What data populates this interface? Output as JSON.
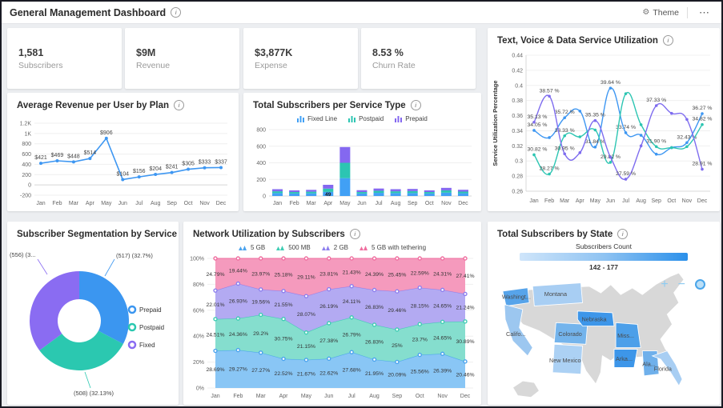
{
  "header": {
    "title": "General Management Dashboard",
    "theme_label": "Theme"
  },
  "icons": {
    "info": "i",
    "theme": "⚙",
    "more": "⋯",
    "zoom_in": "+",
    "zoom_out": "−"
  },
  "kpis": [
    {
      "value": "1,581",
      "label": "Subscribers"
    },
    {
      "value": "$9M",
      "label": "Revenue"
    },
    {
      "value": "$3,877K",
      "label": "Expense"
    },
    {
      "value": "8.53 %",
      "label": "Churn Rate"
    }
  ],
  "months": [
    "Jan",
    "Feb",
    "Mar",
    "Apr",
    "May",
    "Jun",
    "Jul",
    "Aug",
    "Sep",
    "Oct",
    "Nov",
    "Dec"
  ],
  "chart_data": [
    {
      "type": "line",
      "title": "Average Revenue per User by Plan",
      "categories": [
        "Jan",
        "Feb",
        "Mar",
        "Apr",
        "May",
        "Jun",
        "Jul",
        "Aug",
        "Sep",
        "Oct",
        "Nov",
        "Dec"
      ],
      "values": [
        421,
        469,
        448,
        514,
        906,
        104,
        156,
        204,
        241,
        305,
        333,
        337
      ],
      "point_labels": [
        "$421",
        "$469",
        "$448",
        "$514",
        "$906",
        "$104",
        "$156",
        "$204",
        "$241",
        "$305",
        "$333",
        "$337"
      ],
      "ylim": [
        -200,
        1200
      ],
      "ytick_labels": [
        "-200",
        "0",
        "200",
        "400",
        "600",
        "800",
        "1K",
        "1.2K"
      ],
      "color": "#3e97f2"
    },
    {
      "type": "line",
      "title": "Text, Voice & Data Service Utilization",
      "ylabel": "Service Utilization Percentage",
      "categories": [
        "Jan",
        "Feb",
        "Mar",
        "Apr",
        "May",
        "Jun",
        "Jul",
        "Aug",
        "Sep",
        "Oct",
        "Nov",
        "Dec"
      ],
      "ylim": [
        0.26,
        0.44
      ],
      "ytick_step": 0.02,
      "series": [
        {
          "name": "series-blue",
          "color": "#3e97f2",
          "values": [
            0.3405,
            0.331,
            0.3572,
            0.366,
            0.3184,
            0.3964,
            0.3374,
            0.334,
            0.309,
            0.3176,
            0.3243,
            0.3627
          ],
          "labels": [
            "34.05 %",
            null,
            "35.72 %",
            null,
            "31.84 %",
            "39.64 %",
            "33.74 %",
            null,
            null,
            null,
            "32.43 %",
            "36.27 %"
          ]
        },
        {
          "name": "series-teal",
          "color": "#2cc5b2",
          "values": [
            0.3082,
            0.2827,
            0.3333,
            0.332,
            0.341,
            0.2982,
            0.389,
            0.348,
            0.319,
            0.3176,
            0.319,
            0.3482
          ],
          "labels": [
            "30.82 %",
            "28.27 %",
            "33.33 %",
            null,
            null,
            "29.82 %",
            null,
            null,
            "31.90 %",
            null,
            null,
            "34.82 %"
          ]
        },
        {
          "name": "series-purple",
          "color": "#7e6cef",
          "values": [
            0.3513,
            0.3857,
            0.3095,
            0.311,
            0.3535,
            0.305,
            0.2759,
            0.32,
            0.3733,
            0.363,
            0.355,
            0.2891
          ],
          "labels": [
            "35.13 %",
            "38.57 %",
            "30.95 %",
            null,
            "35.35 %",
            null,
            "27.59 %",
            null,
            "37.33 %",
            null,
            null,
            "28.91 %"
          ]
        }
      ]
    },
    {
      "type": "stacked-bar",
      "title": "Total Subscribers per Service Type",
      "categories": [
        "Jan",
        "Feb",
        "Mar",
        "Apr",
        "May",
        "Jun",
        "Jul",
        "Aug",
        "Sep",
        "Oct",
        "Nov",
        "Dec"
      ],
      "ylim": [
        0,
        800
      ],
      "ytick_labels": [
        "0",
        "200",
        "400",
        "600",
        "800"
      ],
      "series": [
        {
          "name": "Fixed Line",
          "color": "#41a0f5",
          "values": [
            35,
            30,
            32,
            49,
            215,
            30,
            38,
            35,
            35,
            30,
            40,
            33
          ]
        },
        {
          "name": "Postpaid",
          "color": "#2cc5b2",
          "values": [
            22,
            18,
            20,
            40,
            185,
            18,
            25,
            22,
            24,
            18,
            28,
            20
          ]
        },
        {
          "name": "Prepaid",
          "color": "#8468f0",
          "values": [
            25,
            20,
            22,
            46,
            190,
            22,
            27,
            25,
            26,
            20,
            30,
            22
          ]
        }
      ],
      "visible_bar_label": {
        "month_index": 3,
        "series_index": 0,
        "text": "49"
      }
    },
    {
      "type": "pie",
      "title": "Subscriber Segmentation by Service Type",
      "slices": [
        {
          "name": "Prepaid",
          "value": 517,
          "color": "#3b96f0",
          "callout": "(517) (32.7%)"
        },
        {
          "name": "Postpaid",
          "value": 508,
          "color": "#2bc8b0",
          "callout": "(508) (32.13%)"
        },
        {
          "name": "Fixed",
          "value": 556,
          "color": "#8a6cf2",
          "callout": "(556) (3..."
        }
      ],
      "total": 1581,
      "legend_position": "right"
    },
    {
      "type": "area",
      "title": "Network Utilization by Subscribers",
      "categories": [
        "Jan",
        "Feb",
        "Mar",
        "Apr",
        "May",
        "Jun",
        "Jul",
        "Aug",
        "Sep",
        "Oct",
        "Nov",
        "Dec"
      ],
      "ylim": [
        0,
        100
      ],
      "ytick_labels": [
        "0%",
        "20%",
        "40%",
        "60%",
        "80%",
        "100%"
      ],
      "stacked_100_percent": true,
      "series": [
        {
          "name": "5 GB",
          "fill": "#83c3f4",
          "stroke": "#4aa3ee",
          "values": [
            28.69,
            29.27,
            27.27,
            22.52,
            21.67,
            22.62,
            27.68,
            21.95,
            20.09,
            25.56,
            26.39,
            20.46
          ],
          "labels": [
            "28.69%",
            "29.27%",
            "27.27%",
            "22.52%",
            "21.67%",
            "22.62%",
            "27.68%",
            "21.95%",
            "20.09%",
            "25.56%",
            "26.39%",
            "20.46%"
          ]
        },
        {
          "name": "500 MB",
          "fill": "#7edccb",
          "stroke": "#3ecdb4",
          "values": [
            24.51,
            24.36,
            29.2,
            30.75,
            21.15,
            27.38,
            26.79,
            26.83,
            25,
            23.7,
            24.65,
            30.89
          ],
          "labels": [
            "24.51%",
            "24.36%",
            "29.2%",
            "30.75%",
            "21.15%",
            "27.38%",
            "26.79%",
            "26.83%",
            "25%",
            "23.7%",
            "24.65%",
            "30.89%"
          ]
        },
        {
          "name": "2 GB",
          "fill": "#afa5f1",
          "stroke": "#8d7fee",
          "values": [
            22.01,
            26.93,
            19.56,
            21.55,
            28.07,
            26.19,
            24.11,
            26.83,
            29.46,
            28.15,
            24.65,
            21.24
          ],
          "labels": [
            "22.01%",
            "26.93%",
            "19.56%",
            "21.55%",
            "28.07%",
            "26.19%",
            "24.11%",
            "26.83%",
            "29.46%",
            "28.15%",
            "24.65%",
            "21.24%"
          ]
        },
        {
          "name": "5 GB with tethering",
          "fill": "#f495b9",
          "stroke": "#ef6e9f",
          "values": [
            24.79,
            19.44,
            23.97,
            25.18,
            29.11,
            23.81,
            21.43,
            24.39,
            25.45,
            22.59,
            24.31,
            27.41
          ],
          "labels": [
            "24.79%",
            "19.44%",
            "23.97%",
            "25.18%",
            "29.11%",
            "23.81%",
            "21.43%",
            "24.39%",
            "25.45%",
            "22.59%",
            "24.31%",
            "27.41%"
          ]
        }
      ]
    },
    {
      "type": "choropleth",
      "title": "Total Subscribers by State",
      "legend_title": "Subscribers Count",
      "range_label": "142 - 177",
      "states": [
        {
          "name": "washington",
          "label": "Washingt...",
          "color": "#57a4ea"
        },
        {
          "name": "montana",
          "label": "Montana",
          "color": "#a8cef3"
        },
        {
          "name": "california",
          "label": "Califo...",
          "color": "#9cc7f0"
        },
        {
          "name": "colorado",
          "label": "Colorado",
          "color": "#74b4ec"
        },
        {
          "name": "new_mexico",
          "label": "New Mexico",
          "color": "#acd1f4"
        },
        {
          "name": "nebraska",
          "label": "Nebraska",
          "color": "#3d96e9"
        },
        {
          "name": "missouri",
          "label": "Miss...",
          "color": "#4c9fe9"
        },
        {
          "name": "arkansas",
          "label": "Arka...",
          "color": "#3d96e9"
        },
        {
          "name": "alabama",
          "label": "Ala...",
          "color": "#6fb0eb"
        },
        {
          "name": "florida",
          "label": "Florida",
          "color": "#a8cef3"
        }
      ]
    }
  ]
}
